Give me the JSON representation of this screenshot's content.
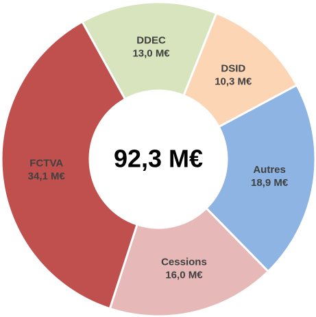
{
  "chart_data": {
    "type": "donut",
    "center_label": "92,3 M€",
    "categories": [
      "DDEC",
      "DSID",
      "Autres",
      "Cessions",
      "FCTVA"
    ],
    "values": [
      13.0,
      10.3,
      18.9,
      16.0,
      34.1
    ],
    "value_labels": [
      "13,0 M€",
      "10,3 M€",
      "18,9 M€",
      "16,0 M€",
      "34,1 M€"
    ],
    "colors": [
      "#d7e4bd",
      "#fcd5b5",
      "#8eb4e3",
      "#e6b9b8",
      "#c0504d"
    ]
  }
}
